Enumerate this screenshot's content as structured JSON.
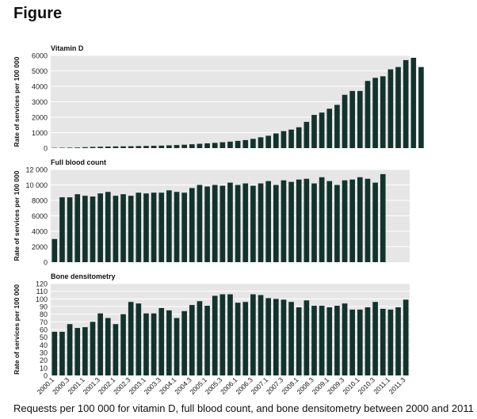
{
  "figure": {
    "heading": "Figure",
    "caption": "Requests per 100 000 for vitamin D, full blood count, and bone densitometry between 2000 and 2011"
  },
  "colors": {
    "bar": "#12332c",
    "panel_bg": "#e6e6e6",
    "grid": "#ffffff"
  },
  "chart_data": [
    {
      "type": "bar",
      "title": "Vitamin D",
      "ylabel": "Rate of services per 100 000",
      "ylim": [
        0,
        6000
      ],
      "yticks": [
        0,
        1000,
        2000,
        3000,
        4000,
        5000,
        6000
      ],
      "ytick_labels": [
        "0",
        "1000",
        "2000",
        "3000",
        "4000",
        "5000",
        "6000"
      ],
      "grid": true,
      "values": [
        20,
        25,
        30,
        40,
        60,
        80,
        90,
        100,
        110,
        115,
        120,
        130,
        140,
        150,
        160,
        180,
        200,
        220,
        250,
        280,
        310,
        340,
        380,
        420,
        470,
        520,
        600,
        700,
        800,
        950,
        1100,
        1200,
        1350,
        1700,
        2150,
        2300,
        2550,
        2800,
        3450,
        3700,
        3700,
        4350,
        4550,
        4650,
        5100,
        5250,
        5700,
        5850,
        5250
      ]
    },
    {
      "type": "bar",
      "title": "Full blood count",
      "ylabel": "Rate of services per 100 000",
      "ylim": [
        0,
        12000
      ],
      "yticks": [
        0,
        2000,
        4000,
        6000,
        8000,
        10000,
        12000
      ],
      "ytick_labels": [
        "0",
        "2000",
        "4000",
        "6000",
        "8000",
        "10 000",
        "12 000"
      ],
      "grid": true,
      "values": [
        3000,
        8400,
        8400,
        8800,
        8600,
        8500,
        8900,
        9100,
        8600,
        8800,
        8600,
        9000,
        8900,
        9000,
        9000,
        9300,
        9100,
        9000,
        9600,
        10000,
        9800,
        10000,
        9900,
        10300,
        10000,
        10200,
        9900,
        10200,
        10500,
        10000,
        10600,
        10400,
        10700,
        10800,
        10200,
        11000,
        10500,
        10000,
        10600,
        10700,
        11000,
        10800,
        10300,
        11400
      ]
    },
    {
      "type": "bar",
      "title": "Bone densitometry",
      "ylabel": "Rate of services per 100 000",
      "ylim": [
        0,
        120
      ],
      "yticks": [
        0,
        10,
        20,
        30,
        40,
        50,
        60,
        70,
        80,
        90,
        100,
        110,
        120
      ],
      "ytick_labels": [
        "0",
        "10",
        "20",
        "30",
        "40",
        "50",
        "60",
        "70",
        "80",
        "90",
        "100",
        "110",
        "120"
      ],
      "grid": true,
      "x": [
        "2000.1",
        "2000.2",
        "2000.3",
        "2000.4",
        "2001.1",
        "2001.2",
        "2001.3",
        "2001.4",
        "2002.1",
        "2002.2",
        "2002.3",
        "2002.4",
        "2003.1",
        "2003.2",
        "2003.3",
        "2003.4",
        "2004.1",
        "2004.2",
        "2004.3",
        "2004.4",
        "2005.1",
        "2005.2",
        "2005.3",
        "2005.4",
        "2006.1",
        "2006.2",
        "2006.3",
        "2006.4",
        "2007.1",
        "2007.2",
        "2007.3",
        "2007.4",
        "2008.1",
        "2008.2",
        "2008.3",
        "2008.4",
        "2009.1",
        "2009.2",
        "2009.3",
        "2009.4",
        "2010.1",
        "2010.2",
        "2010.3",
        "2010.4",
        "2011.1",
        "2011.2",
        "2011.3"
      ],
      "xtick_labels": [
        "2000.1",
        "2000.3",
        "2001.1",
        "2001.3",
        "2002.1",
        "2002.3",
        "2003.1",
        "2003.3",
        "2004.1",
        "2004.3",
        "2005.1",
        "2005.3",
        "2006.1",
        "2006.3",
        "2007.1",
        "2007.3",
        "2008.1",
        "2008.3",
        "2009.1",
        "2009.3",
        "2010.1",
        "2010.3",
        "2011.1",
        "2011.3"
      ],
      "values": [
        57,
        57,
        67,
        62,
        63,
        70,
        81,
        75,
        67,
        80,
        96,
        94,
        81,
        81,
        88,
        85,
        75,
        84,
        92,
        97,
        91,
        104,
        106,
        106,
        95,
        96,
        106,
        105,
        101,
        100,
        99,
        96,
        89,
        98,
        91,
        91,
        89,
        91,
        94,
        86,
        86,
        89,
        96,
        87,
        86,
        89,
        99
      ]
    }
  ]
}
